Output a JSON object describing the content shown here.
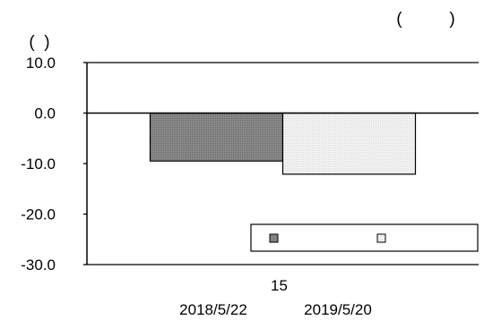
{
  "chart_data": {
    "type": "bar",
    "title": "(          )",
    "ylabel": "(  )",
    "categories": [
      "15"
    ],
    "series": [
      {
        "name": "2018/5/22",
        "values": [
          -9.5
        ],
        "color": "#808080"
      },
      {
        "name": "2019/5/20",
        "values": [
          -12.1
        ],
        "color": "#efefef"
      }
    ],
    "ylim": [
      -30,
      10
    ],
    "yticks": [
      {
        "value": 10,
        "label": "10.0"
      },
      {
        "value": 0,
        "label": "0.0"
      },
      {
        "value": -10,
        "label": "-10.0"
      },
      {
        "value": -20,
        "label": "-20.0"
      },
      {
        "value": -30,
        "label": "-30.0"
      }
    ],
    "legend": {
      "placement": "bottom-right",
      "entries": [
        "",
        ""
      ]
    },
    "grid": false
  }
}
